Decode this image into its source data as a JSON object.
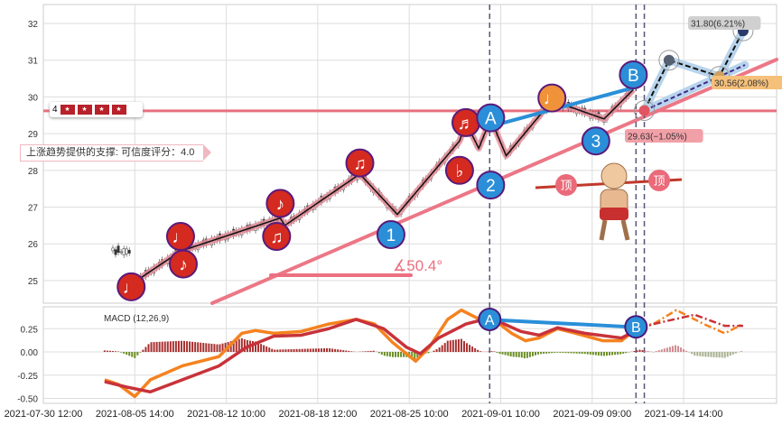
{
  "chart_data": {
    "type": "line",
    "title": "",
    "price_axis": {
      "ticks": [
        25,
        26,
        27,
        28,
        29,
        30,
        31,
        32
      ],
      "ylim": [
        24.4,
        32.4
      ]
    },
    "macd_axis": {
      "label": "MACD (12,26,9)",
      "ticks": [
        0.25,
        0.0,
        -0.25,
        -0.5
      ],
      "tick_labels": [
        "0.25",
        "0.00",
        "-0.25",
        "-0.50"
      ],
      "ylim": [
        -0.55,
        0.45
      ]
    },
    "x_tick_labels": [
      "2021-07-30 12:00",
      "2021-08-05 14:00",
      "2021-08-12 10:00",
      "2021-08-18 12:00",
      "2021-08-25 10:00",
      "2021-09-01 10:00",
      "2021-09-09 09:00",
      "2021-09-14 14:00"
    ],
    "x_tick_index": [
      0,
      100,
      200,
      300,
      400,
      500,
      600,
      700
    ],
    "zigzag": [
      [
        96,
        24.9
      ],
      [
        150,
        25.8
      ],
      [
        259,
        26.7
      ],
      [
        264,
        26.5
      ],
      [
        346,
        27.9
      ],
      [
        387,
        26.8
      ],
      [
        455,
        28.8
      ],
      [
        462,
        29.3
      ],
      [
        476,
        28.6
      ],
      [
        489,
        29.4
      ],
      [
        506,
        28.4
      ],
      [
        556,
        29.9
      ],
      [
        613,
        29.4
      ],
      [
        645,
        30.2
      ]
    ],
    "patterns": [
      {
        "symbol": "♩",
        "i": 96,
        "p": 24.83,
        "color": "#d42a20"
      },
      {
        "symbol": "♩",
        "i": 150,
        "p": 26.2,
        "color": "#d42a20"
      },
      {
        "symbol": "♪",
        "i": 153,
        "p": 25.45,
        "color": "#d42a20"
      },
      {
        "symbol": "♪",
        "i": 259,
        "p": 27.1,
        "color": "#d42a20"
      },
      {
        "symbol": "♫",
        "i": 255,
        "p": 26.2,
        "color": "#d42a20"
      },
      {
        "symbol": "♫",
        "i": 346,
        "p": 28.2,
        "color": "#d42a20"
      },
      {
        "symbol": "1",
        "i": 380,
        "p": 26.25,
        "color": "#2a8fd8"
      },
      {
        "symbol": "♭",
        "i": 455,
        "p": 28.0,
        "color": "#d42a20"
      },
      {
        "symbol": "♬",
        "i": 462,
        "p": 29.3,
        "color": "#d42a20"
      },
      {
        "symbol": "A",
        "i": 489,
        "p": 29.43,
        "color": "#2a8fd8"
      },
      {
        "symbol": "2",
        "i": 489,
        "p": 27.6,
        "color": "#2a8fd8"
      },
      {
        "symbol": "♩",
        "i": 556,
        "p": 29.97,
        "color": "#f0923a"
      },
      {
        "symbol": "3",
        "i": 604,
        "p": 28.8,
        "color": "#2a8fd8"
      },
      {
        "symbol": "B",
        "i": 645,
        "p": 30.6,
        "color": "#2a8fd8"
      }
    ],
    "support_level": 29.62,
    "support_label": "上涨趋势提供的支撑: 可信度评分：4.0",
    "rating_value": "4",
    "rating_icons": [
      "★",
      "★",
      "★",
      "★"
    ],
    "angle_label": "∡50.4°",
    "top_label": "顶",
    "forecast": [
      {
        "i": 657,
        "p": 29.63,
        "label": "29.63(−1.05%)",
        "bg": "#f2a0a8"
      },
      {
        "i": 684,
        "p": 31.0,
        "label": "",
        "bg": ""
      },
      {
        "i": 739,
        "p": 30.56,
        "label": "30.56(2.08%)",
        "bg": "#f5c07a"
      },
      {
        "i": 765,
        "p": 31.8,
        "label": "31.80(6.21%)",
        "bg": "#d0d0d0"
      }
    ],
    "macd_dif": [
      [
        67,
        -0.3
      ],
      [
        82,
        -0.35
      ],
      [
        100,
        -0.48
      ],
      [
        117,
        -0.3
      ],
      [
        152,
        -0.15
      ],
      [
        192,
        -0.05
      ],
      [
        217,
        0.2
      ],
      [
        232,
        0.23
      ],
      [
        252,
        0.2
      ],
      [
        282,
        0.22
      ],
      [
        312,
        0.3
      ],
      [
        342,
        0.35
      ],
      [
        362,
        0.3
      ],
      [
        382,
        0.1
      ],
      [
        407,
        -0.1
      ],
      [
        422,
        0.05
      ],
      [
        442,
        0.35
      ],
      [
        457,
        0.45
      ],
      [
        477,
        0.35
      ],
      [
        492,
        0.35
      ],
      [
        512,
        0.2
      ],
      [
        527,
        0.12
      ],
      [
        542,
        0.15
      ],
      [
        562,
        0.25
      ],
      [
        582,
        0.2
      ],
      [
        612,
        0.12
      ],
      [
        632,
        0.12
      ],
      [
        652,
        0.28
      ],
      [
        667,
        0.3
      ],
      [
        692,
        0.45
      ],
      [
        722,
        0.3
      ],
      [
        745,
        0.2
      ],
      [
        765,
        0.3
      ]
    ],
    "macd_dea": [
      [
        67,
        -0.32
      ],
      [
        92,
        -0.38
      ],
      [
        117,
        -0.43
      ],
      [
        152,
        -0.3
      ],
      [
        192,
        -0.15
      ],
      [
        222,
        0.05
      ],
      [
        252,
        0.17
      ],
      [
        282,
        0.18
      ],
      [
        312,
        0.25
      ],
      [
        342,
        0.35
      ],
      [
        372,
        0.25
      ],
      [
        397,
        0.05
      ],
      [
        412,
        -0.02
      ],
      [
        432,
        0.15
      ],
      [
        462,
        0.3
      ],
      [
        482,
        0.35
      ],
      [
        497,
        0.33
      ],
      [
        522,
        0.22
      ],
      [
        542,
        0.18
      ],
      [
        562,
        0.26
      ],
      [
        592,
        0.2
      ],
      [
        632,
        0.15
      ],
      [
        652,
        0.25
      ],
      [
        667,
        0.3
      ],
      [
        712,
        0.4
      ],
      [
        745,
        0.28
      ],
      [
        765,
        0.28
      ]
    ],
    "forecast_start_index": 657,
    "macd_markers": [
      {
        "symbol": "A",
        "i": 482,
        "v": 0.35
      },
      {
        "symbol": "B",
        "i": 640,
        "v": 0.27
      }
    ],
    "dashed_markers_index": [
      482,
      640,
      657
    ]
  }
}
